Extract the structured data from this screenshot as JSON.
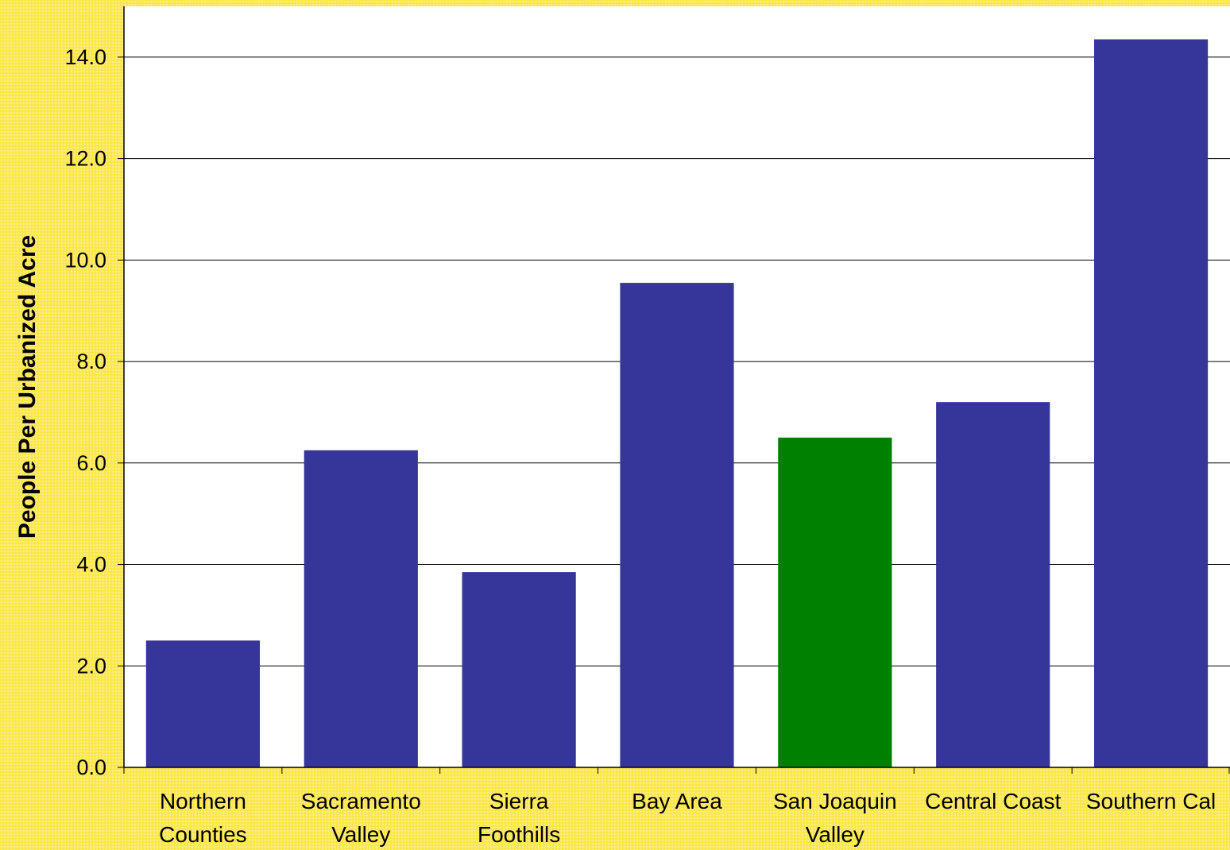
{
  "chart_data": {
    "type": "bar",
    "title": "",
    "xlabel": "",
    "ylabel": "People Per Urbanized Acre",
    "categories": [
      [
        "Northern",
        "Counties"
      ],
      [
        "Sacramento",
        "Valley"
      ],
      [
        "Sierra",
        "Foothills"
      ],
      [
        "Bay Area"
      ],
      [
        "San Joaquin",
        "Valley"
      ],
      [
        "Central Coast"
      ],
      [
        "Southern Cal"
      ]
    ],
    "values": [
      2.5,
      6.25,
      3.85,
      9.55,
      6.5,
      7.2,
      14.35
    ],
    "bar_colors": [
      "#35359a",
      "#35359a",
      "#35359a",
      "#35359a",
      "#008000",
      "#35359a",
      "#35359a"
    ],
    "ylim": [
      0,
      15
    ],
    "yticks": [
      0,
      2,
      4,
      6,
      8,
      10,
      12,
      14
    ],
    "ytick_labels": [
      "0.0",
      "2.0",
      "4.0",
      "6.0",
      "8.0",
      "10.0",
      "12.0",
      "14.0"
    ],
    "grid": true,
    "legend": "none",
    "colors": {
      "background": "#fbe64a",
      "plot_area": "#ffffff",
      "default_bar": "#35359a",
      "highlight_bar": "#008000",
      "gridline": "#000000"
    }
  }
}
